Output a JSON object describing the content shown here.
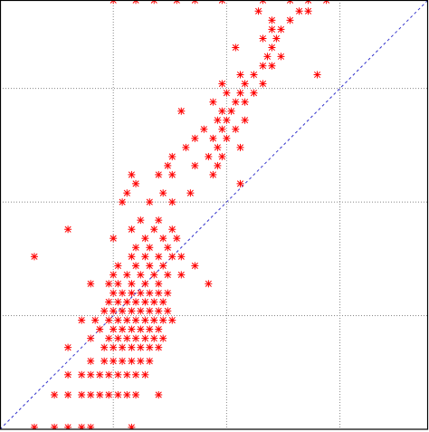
{
  "chart_data": {
    "type": "scatter",
    "log_x": true,
    "log_y": true,
    "grid": true,
    "color": "#ff0000",
    "xlim": [
      0.1,
      600
    ],
    "ylim": [
      0.1,
      600
    ],
    "xticks": [
      1,
      10,
      100
    ],
    "yticks": [
      1,
      10,
      100
    ],
    "x": [
      0.201,
      0.302,
      0.398,
      0.525,
      0.631,
      1.45,
      0.302,
      0.398,
      0.525,
      0.631,
      0.759,
      0.912,
      1.1,
      1.32,
      1.58,
      2.51,
      0.398,
      0.525,
      0.631,
      0.759,
      0.912,
      1.1,
      1.32,
      1.58,
      1.91,
      0.631,
      0.832,
      1,
      1.2,
      1.45,
      1.74,
      2.09,
      0.398,
      0.832,
      1,
      1.2,
      1.45,
      1.74,
      2.09,
      2.51,
      0.631,
      0.912,
      1.1,
      1.32,
      1.58,
      1.91,
      2.29,
      2.75,
      0.759,
      1,
      1.2,
      1.45,
      1.74,
      2.09,
      2.51,
      0.525,
      0.692,
      0.912,
      1.1,
      1.32,
      1.58,
      1.91,
      2.29,
      2.75,
      3.31,
      0.832,
      1,
      1.2,
      1.45,
      1.74,
      2.09,
      2.51,
      3.02,
      0.912,
      1.1,
      1.32,
      1.58,
      1.91,
      2.29,
      2.75,
      1,
      1.2,
      1.45,
      1.74,
      2.09,
      2.51,
      3.02,
      0.631,
      0.912,
      1.1,
      1.45,
      1.91,
      2.51,
      6.92,
      1,
      1.32,
      1.74,
      2.29,
      3.02,
      3.98,
      1.1,
      1.58,
      2.09,
      2.75,
      5.25,
      0.201,
      1.45,
      1.91,
      2.51,
      3.31,
      3.98,
      1.58,
      2.09,
      3.02,
      1,
      1.91,
      2.75,
      3.63,
      0.398,
      1.45,
      2.29,
      3.31,
      1.74,
      2.51,
      1.2,
      2.09,
      3.31,
      1.32,
      2.75,
      4.79,
      1.58,
      13.2,
      1.45,
      2.51,
      3.31,
      7.59,
      3.02,
      5.25,
      8.32,
      3.31,
      6.92,
      9.12,
      4.37,
      8.32,
      13.2,
      5.25,
      7.59,
      10,
      6.31,
      9.12,
      12.0,
      8.32,
      10,
      14.5,
      3.98,
      11.0,
      9.12,
      7.59,
      12.0,
      14.5,
      10,
      13.2,
      17.4,
      9.12,
      14.5,
      20.9,
      13.2,
      17.4,
      63.1,
      20.9,
      25.1,
      22.9,
      30.2,
      12.0,
      25.1,
      20.9,
      27.5,
      25.1,
      30.2,
      25.1,
      36.3,
      19.1,
      43.7,
      52.5,
      1,
      1.58,
      2.29,
      3.63,
      5.25,
      9.12,
      20.9,
      36.3,
      52.5,
      75.9
    ],
    "values": [
      0.104,
      0.104,
      0.104,
      0.104,
      0.104,
      0.104,
      0.201,
      0.201,
      0.201,
      0.201,
      0.201,
      0.201,
      0.201,
      0.201,
      0.201,
      0.201,
      0.302,
      0.302,
      0.302,
      0.302,
      0.302,
      0.302,
      0.302,
      0.302,
      0.302,
      0.398,
      0.398,
      0.398,
      0.398,
      0.398,
      0.398,
      0.398,
      0.525,
      0.525,
      0.525,
      0.525,
      0.525,
      0.525,
      0.525,
      0.525,
      0.631,
      0.631,
      0.631,
      0.631,
      0.631,
      0.631,
      0.631,
      0.631,
      0.759,
      0.759,
      0.759,
      0.759,
      0.759,
      0.759,
      0.759,
      0.912,
      0.912,
      0.912,
      0.912,
      0.912,
      0.912,
      0.912,
      0.912,
      0.912,
      0.912,
      1.1,
      1.1,
      1.1,
      1.1,
      1.1,
      1.1,
      1.1,
      1.1,
      1.32,
      1.32,
      1.32,
      1.32,
      1.32,
      1.32,
      1.32,
      1.58,
      1.58,
      1.58,
      1.58,
      1.58,
      1.58,
      1.58,
      1.91,
      1.91,
      1.91,
      1.91,
      1.91,
      1.91,
      1.91,
      2.29,
      2.29,
      2.29,
      2.29,
      2.29,
      2.29,
      2.75,
      2.75,
      2.75,
      2.75,
      2.75,
      3.31,
      3.31,
      3.31,
      3.31,
      3.31,
      3.31,
      3.98,
      3.98,
      3.98,
      4.79,
      4.79,
      4.79,
      4.79,
      5.75,
      5.75,
      5.75,
      5.75,
      6.92,
      6.92,
      10,
      10,
      10,
      12.0,
      12.0,
      12.0,
      14.5,
      14.5,
      17.4,
      17.4,
      17.4,
      17.4,
      20.9,
      20.9,
      20.9,
      25.1,
      25.1,
      25.1,
      30.2,
      30.2,
      30.2,
      36.3,
      36.3,
      36.3,
      43.7,
      43.7,
      43.7,
      52.5,
      52.5,
      52.5,
      63.1,
      63.1,
      63.1,
      75.9,
      75.9,
      75.9,
      91.2,
      91.2,
      91.2,
      110,
      110,
      110,
      132,
      132,
      132,
      158,
      158,
      191,
      191,
      229,
      229,
      275,
      275,
      331,
      331,
      398,
      398,
      479,
      479,
      479,
      597,
      597,
      597,
      597,
      597,
      597,
      597,
      597,
      597,
      597
    ]
  }
}
